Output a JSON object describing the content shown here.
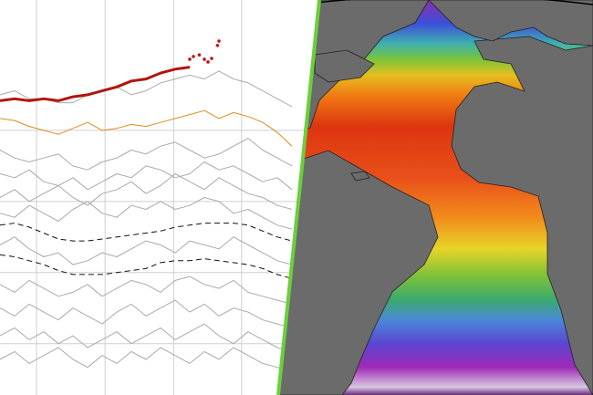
{
  "chart_data": {
    "type": "line",
    "x": [
      0,
      2,
      4,
      6,
      8,
      10,
      12,
      14,
      16,
      18,
      20,
      22,
      24,
      26,
      28,
      30,
      32,
      34,
      36,
      38,
      40
    ],
    "xlim": [
      0,
      40
    ],
    "ylim": [
      0,
      10
    ],
    "xticks": [
      5,
      14.4,
      23.8,
      33.1
    ],
    "yticks": [
      1.3,
      3.1,
      4.9,
      6.7
    ],
    "grid": true,
    "tick_labels": false,
    "series": [
      {
        "color": "#aaaaaa",
        "values": [
          7.6,
          7.7,
          7.5,
          7.5,
          7.4,
          7.4,
          7.6,
          7.7,
          7.8,
          7.6,
          7.7,
          7.9,
          8.0,
          8.1,
          8.0,
          8.2,
          8.0,
          7.9,
          7.7,
          7.5,
          7.3
        ]
      },
      {
        "color": "#aaaaaa",
        "values": [
          6.2,
          6.0,
          5.9,
          6.0,
          6.1,
          5.8,
          5.7,
          5.9,
          6.0,
          6.2,
          6.1,
          6.3,
          6.4,
          6.2,
          6.0,
          6.1,
          6.3,
          6.5,
          6.2,
          6.0,
          5.8
        ]
      },
      {
        "color": "#aaaaaa",
        "values": [
          5.6,
          5.5,
          5.7,
          5.4,
          5.3,
          5.5,
          5.2,
          5.4,
          5.6,
          5.5,
          5.8,
          5.7,
          5.5,
          5.6,
          5.9,
          5.7,
          5.8,
          5.6,
          5.4,
          5.5,
          5.2
        ]
      },
      {
        "color": "#aaaaaa",
        "values": [
          5.0,
          5.2,
          4.9,
          5.1,
          5.3,
          5.0,
          4.8,
          5.1,
          5.2,
          5.4,
          5.1,
          5.3,
          5.6,
          5.4,
          5.2,
          5.5,
          5.3,
          5.1,
          5.0,
          4.8,
          4.7
        ]
      },
      {
        "color": "#aaaaaa",
        "values": [
          4.6,
          4.5,
          4.8,
          4.6,
          4.4,
          4.7,
          4.9,
          4.6,
          4.5,
          4.8,
          4.7,
          4.9,
          4.7,
          4.8,
          5.0,
          4.9,
          4.6,
          4.7,
          4.5,
          4.3,
          4.2
        ]
      },
      {
        "color": "#aaaaaa",
        "values": [
          3.8,
          4.0,
          3.7,
          3.5,
          3.6,
          3.3,
          3.4,
          3.6,
          3.5,
          3.7,
          3.9,
          3.8,
          3.6,
          3.9,
          3.8,
          3.7,
          4.0,
          3.8,
          3.6,
          3.4,
          3.3
        ]
      },
      {
        "color": "#aaaaaa",
        "values": [
          2.8,
          2.6,
          2.9,
          2.7,
          2.5,
          2.6,
          2.8,
          2.5,
          2.7,
          2.9,
          2.8,
          2.6,
          2.9,
          3.0,
          2.8,
          2.7,
          2.9,
          2.6,
          2.5,
          2.4,
          2.3
        ]
      },
      {
        "color": "#aaaaaa",
        "values": [
          2.2,
          2.0,
          2.3,
          2.1,
          1.9,
          2.2,
          2.0,
          1.8,
          2.1,
          2.3,
          2.0,
          2.2,
          2.4,
          2.1,
          2.3,
          2.0,
          2.2,
          2.1,
          1.9,
          1.8,
          1.7
        ]
      },
      {
        "color": "#aaaaaa",
        "values": [
          1.5,
          1.7,
          1.4,
          1.6,
          1.3,
          1.5,
          1.2,
          1.4,
          1.6,
          1.3,
          1.5,
          1.7,
          1.4,
          1.6,
          1.8,
          1.5,
          1.3,
          1.6,
          1.4,
          1.2,
          1.1
        ]
      },
      {
        "color": "#aaaaaa",
        "values": [
          0.9,
          1.1,
          0.8,
          1.0,
          1.2,
          0.9,
          0.7,
          1.0,
          0.8,
          1.1,
          0.9,
          1.2,
          1.0,
          0.8,
          1.1,
          0.9,
          1.2,
          1.0,
          0.8,
          0.7,
          0.6
        ]
      },
      {
        "color": "#111111",
        "dashed": true,
        "values": [
          4.3,
          4.35,
          4.25,
          4.1,
          3.95,
          3.9,
          3.9,
          3.95,
          4.0,
          4.05,
          4.1,
          4.15,
          4.25,
          4.3,
          4.35,
          4.35,
          4.35,
          4.3,
          4.15,
          4.0,
          3.9
        ]
      },
      {
        "color": "#111111",
        "dashed": true,
        "values": [
          3.55,
          3.5,
          3.4,
          3.3,
          3.15,
          3.05,
          3.05,
          3.05,
          3.1,
          3.15,
          3.2,
          3.35,
          3.4,
          3.4,
          3.45,
          3.4,
          3.35,
          3.3,
          3.2,
          3.05,
          2.95
        ]
      },
      {
        "color": "#e08a1e",
        "values": [
          7.0,
          6.95,
          6.8,
          6.7,
          6.6,
          6.75,
          6.9,
          6.7,
          6.75,
          6.85,
          6.8,
          6.9,
          7.0,
          7.1,
          7.2,
          7.0,
          7.15,
          7.05,
          6.9,
          6.65,
          6.3
        ]
      },
      {
        "color": "#b0150f",
        "width": 3,
        "values": [
          7.45,
          7.5,
          7.45,
          7.5,
          7.45,
          7.55,
          7.6,
          7.7,
          7.8,
          7.95,
          8.0,
          8.15,
          8.25,
          8.3,
          null,
          null,
          null,
          null,
          null,
          null,
          null
        ]
      }
    ],
    "points": {
      "color": "#c0161a",
      "x": [
        26,
        26.5,
        27.3,
        28,
        28.5,
        29,
        29.8,
        30
      ],
      "values": [
        8.5,
        8.57,
        8.61,
        8.5,
        8.43,
        8.52,
        8.85,
        8.96
      ]
    }
  }
}
